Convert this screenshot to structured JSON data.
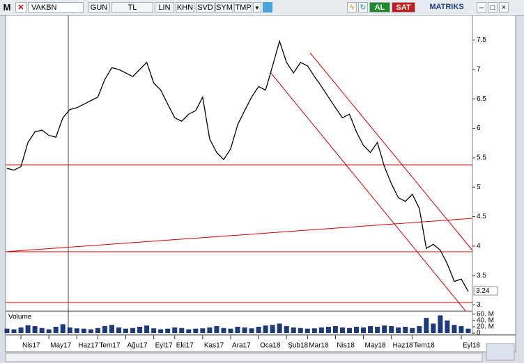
{
  "toolbar": {
    "logo": "M",
    "symbol": "VAKBN",
    "buttons": [
      "GUN",
      "TL",
      "LIN",
      "KHN",
      "SVD",
      "SYM",
      "TMP"
    ],
    "buy": "AL",
    "sell": "SAT",
    "brand": "MATRIKS"
  },
  "chart_data": [
    {
      "type": "line",
      "color": "#000000",
      "categories": [
        null,
        null,
        "Nis17",
        null,
        null,
        null,
        "May17",
        null,
        null,
        null,
        "Haz17",
        null,
        null,
        "Tem17",
        null,
        null,
        null,
        "Ağu17",
        null,
        null,
        null,
        "Eyl17",
        null,
        null,
        "Eki17",
        null,
        null,
        null,
        "Kas17",
        null,
        null,
        null,
        "Ara17",
        null,
        null,
        null,
        "Oca18",
        null,
        null,
        null,
        "Şub18",
        null,
        null,
        "Mar18",
        null,
        null,
        null,
        "Nis18",
        null,
        null,
        null,
        "May18",
        null,
        null,
        null,
        "Haz18",
        null,
        null,
        "Tem18",
        null,
        null,
        null,
        null,
        null,
        null,
        "Eyl18",
        null
      ],
      "values": [
        5.32,
        5.29,
        5.35,
        5.76,
        5.94,
        5.97,
        5.88,
        5.85,
        6.18,
        6.32,
        6.35,
        6.41,
        6.47,
        6.53,
        6.83,
        7.03,
        7.0,
        6.94,
        6.88,
        7.0,
        7.12,
        6.77,
        6.65,
        6.41,
        6.18,
        6.12,
        6.24,
        6.3,
        6.53,
        5.82,
        5.59,
        5.47,
        5.65,
        6.06,
        6.3,
        6.53,
        6.71,
        6.65,
        7.06,
        7.48,
        7.12,
        6.94,
        7.12,
        7.06,
        6.88,
        6.71,
        6.53,
        6.35,
        6.18,
        6.24,
        5.94,
        5.71,
        5.59,
        5.76,
        5.35,
        5.06,
        4.82,
        4.76,
        4.88,
        4.64,
        3.96,
        4.03,
        3.93,
        3.7,
        3.4,
        3.44,
        3.23
      ],
      "ylim": [
        2.9,
        7.92
      ],
      "yticks": [
        {
          "value": 3,
          "label": "3."
        },
        3.5,
        4,
        4.5,
        5,
        5.5,
        6,
        6.5,
        7,
        7.5
      ],
      "last_price": 3.24
    },
    {
      "type": "bar",
      "title": "Volume",
      "color": "#1f3a78",
      "values": [
        14000000,
        12000000,
        18000000,
        25000000,
        22000000,
        16000000,
        12000000,
        20000000,
        28000000,
        18000000,
        15000000,
        14000000,
        12000000,
        16000000,
        22000000,
        26000000,
        18000000,
        14000000,
        16000000,
        20000000,
        24000000,
        15000000,
        12000000,
        14000000,
        18000000,
        16000000,
        12000000,
        14000000,
        15000000,
        18000000,
        22000000,
        16000000,
        14000000,
        20000000,
        18000000,
        15000000,
        20000000,
        24000000,
        26000000,
        30000000,
        22000000,
        18000000,
        16000000,
        14000000,
        15000000,
        18000000,
        20000000,
        22000000,
        18000000,
        16000000,
        20000000,
        18000000,
        22000000,
        20000000,
        24000000,
        22000000,
        18000000,
        20000000,
        16000000,
        22000000,
        48000000,
        30000000,
        56000000,
        40000000,
        26000000,
        22000000,
        14000000
      ],
      "ylim": [
        0,
        66000000
      ],
      "yticks": [
        0,
        {
          "value": 20000000,
          "label": "20. M"
        },
        {
          "value": 40000000,
          "label": "40. M"
        },
        {
          "value": 60000000,
          "label": "60. M"
        }
      ]
    }
  ]
}
